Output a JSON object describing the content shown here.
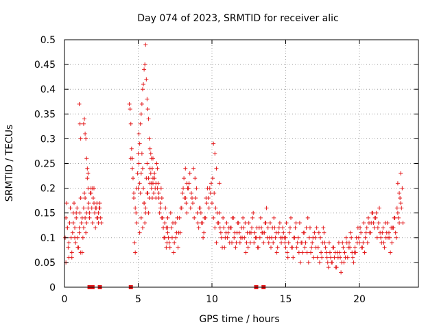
{
  "chart_data": {
    "type": "scatter",
    "title": "Day 074 of 2023, SRMTID for receiver alic",
    "xlabel": "GPS time / hours",
    "ylabel": "SRMTID / TECUs",
    "xlim": [
      0,
      24
    ],
    "ylim": [
      0,
      0.5
    ],
    "x_ticks": [
      "0",
      "5",
      "10",
      "15",
      "20"
    ],
    "y_ticks": [
      "0",
      "0.05",
      "0.1",
      "0.15",
      "0.2",
      "0.25",
      "0.3",
      "0.35",
      "0.4",
      "0.45",
      "0.5"
    ],
    "grid": true,
    "marker": "+",
    "color": "#e41a1c",
    "zero_markers": {
      "marker": "square",
      "x": [
        1.7,
        1.9,
        2.4,
        4.5,
        13.0,
        13.5
      ]
    },
    "series": [
      {
        "x": [
          0.05,
          0.1,
          0.15,
          0.2,
          0.25,
          0.3,
          0.35,
          0.4,
          0.45,
          0.5,
          0.55,
          0.6,
          0.65,
          0.7,
          0.75,
          0.8,
          0.85,
          0.9,
          0.95,
          1.0,
          1.05,
          1.1,
          1.15,
          1.2,
          1.25,
          1.3,
          1.35,
          1.4,
          1.45,
          1.5,
          1.55,
          1.6,
          1.65,
          1.7,
          1.75,
          1.8,
          1.85,
          1.9,
          1.95,
          2.0,
          2.05,
          2.1,
          2.15,
          2.2,
          2.25,
          2.3,
          2.35,
          2.4,
          2.45,
          2.5,
          0.1,
          0.2,
          0.3,
          0.4,
          0.5,
          0.6,
          0.7,
          0.8,
          0.9,
          1.0,
          1.1,
          1.2,
          1.3,
          1.4,
          1.5,
          1.6,
          1.7,
          1.8,
          1.9,
          2.0,
          2.1,
          2.2,
          2.3,
          2.4,
          1.0,
          1.05,
          1.1,
          1.3,
          1.35,
          1.4,
          1.45,
          1.5,
          1.55,
          1.6
        ],
        "y": [
          0.1,
          0.14,
          0.17,
          0.12,
          0.08,
          0.06,
          0.13,
          0.16,
          0.1,
          0.07,
          0.11,
          0.15,
          0.17,
          0.12,
          0.09,
          0.14,
          0.16,
          0.1,
          0.08,
          0.12,
          0.15,
          0.18,
          0.13,
          0.07,
          0.1,
          0.16,
          0.19,
          0.14,
          0.11,
          0.15,
          0.22,
          0.2,
          0.17,
          0.14,
          0.19,
          0.2,
          0.16,
          0.13,
          0.18,
          0.2,
          0.15,
          0.12,
          0.16,
          0.17,
          0.14,
          0.13,
          0.16,
          0.17,
          0.14,
          0.13,
          0.05,
          0.12,
          0.09,
          0.16,
          0.06,
          0.13,
          0.1,
          0.15,
          0.08,
          0.11,
          0.07,
          0.14,
          0.12,
          0.18,
          0.13,
          0.16,
          0.15,
          0.19,
          0.2,
          0.17,
          0.16,
          0.14,
          0.15,
          0.16,
          0.37,
          0.33,
          0.3,
          0.33,
          0.34,
          0.31,
          0.3,
          0.26,
          0.24,
          0.23
        ]
      },
      {
        "x": [
          4.4,
          4.45,
          4.5,
          4.55,
          4.6,
          4.65,
          4.7,
          4.75,
          4.8,
          4.85,
          4.9,
          4.95,
          5.0,
          5.05,
          5.1,
          5.15,
          5.2,
          5.25,
          5.3,
          5.35,
          5.4,
          5.45,
          5.5,
          5.55,
          5.6,
          5.65,
          5.7,
          5.75,
          5.8,
          5.85,
          5.9,
          5.95,
          6.0,
          6.05,
          6.1,
          6.15,
          6.2,
          6.25,
          6.3,
          6.35,
          6.4,
          6.45,
          6.5,
          6.55,
          6.6,
          6.65,
          6.7,
          6.75,
          6.8,
          6.85,
          6.9,
          6.95,
          7.0,
          4.5,
          4.6,
          4.7,
          4.8,
          4.9,
          5.0,
          5.1,
          5.2,
          5.3,
          5.4,
          5.5,
          5.6,
          5.7,
          5.8,
          5.9,
          6.0,
          6.1,
          6.2,
          6.3,
          6.4,
          6.5,
          6.6,
          6.7,
          6.8,
          6.9,
          7.0,
          5.0,
          5.05,
          5.1,
          5.15,
          5.2,
          5.25,
          5.3,
          5.35,
          5.4,
          5.45,
          5.5,
          5.55,
          5.6,
          5.65,
          5.7,
          5.75,
          5.8,
          5.85,
          5.9,
          5.95,
          6.0
        ],
        "y": [
          0.37,
          0.36,
          0.33,
          0.28,
          0.26,
          0.22,
          0.18,
          0.09,
          0.07,
          0.15,
          0.2,
          0.23,
          0.27,
          0.25,
          0.21,
          0.19,
          0.23,
          0.27,
          0.24,
          0.2,
          0.17,
          0.13,
          0.16,
          0.22,
          0.25,
          0.19,
          0.15,
          0.18,
          0.21,
          0.23,
          0.2,
          0.18,
          0.21,
          0.19,
          0.22,
          0.2,
          0.18,
          0.25,
          0.24,
          0.21,
          0.19,
          0.15,
          0.17,
          0.2,
          0.18,
          0.14,
          0.12,
          0.1,
          0.13,
          0.16,
          0.12,
          0.09,
          0.11,
          0.26,
          0.24,
          0.19,
          0.16,
          0.13,
          0.2,
          0.11,
          0.14,
          0.12,
          0.17,
          0.15,
          0.19,
          0.22,
          0.24,
          0.21,
          0.26,
          0.23,
          0.21,
          0.2,
          0.18,
          0.16,
          0.14,
          0.12,
          0.1,
          0.08,
          0.14,
          0.27,
          0.31,
          0.29,
          0.33,
          0.35,
          0.37,
          0.4,
          0.41,
          0.44,
          0.45,
          0.49,
          0.42,
          0.38,
          0.36,
          0.34,
          0.3,
          0.28,
          0.27,
          0.26,
          0.24,
          0.22
        ]
      },
      {
        "x": [
          7.0,
          7.1,
          7.2,
          7.3,
          7.4,
          7.5,
          7.6,
          7.7,
          7.8,
          7.9,
          8.0,
          8.1,
          8.2,
          8.3,
          8.4,
          8.5,
          8.6,
          8.7,
          8.8,
          8.9,
          9.0,
          9.1,
          9.2,
          9.3,
          9.4,
          9.5,
          9.6,
          9.7,
          9.8,
          9.9,
          10.0,
          10.1,
          10.2,
          10.3,
          10.4,
          10.5,
          10.6,
          10.7,
          10.8,
          10.9,
          11.0,
          11.1,
          11.2,
          11.3,
          11.4,
          11.5,
          11.6,
          11.7,
          11.8,
          11.9,
          12.0,
          12.1,
          12.2,
          12.3,
          12.4,
          12.5,
          12.6,
          12.7,
          12.8,
          12.9,
          13.0,
          13.1,
          13.2,
          13.3,
          13.4,
          13.5,
          13.6,
          13.7,
          13.8,
          13.9,
          14.0,
          14.1,
          14.2,
          14.3,
          14.4,
          14.5,
          14.6,
          14.7,
          14.8,
          14.9,
          15.0,
          7.05,
          7.25,
          7.45,
          7.65,
          7.85,
          8.05,
          8.25,
          8.45,
          8.65,
          8.85,
          9.05,
          9.25,
          9.45,
          9.65,
          9.85,
          10.05,
          10.25,
          10.45,
          10.65,
          10.85,
          11.05,
          11.25,
          11.45,
          11.65,
          11.85,
          12.05,
          12.25,
          12.45,
          12.65,
          12.85,
          13.05,
          13.25,
          13.45,
          13.65,
          13.85,
          14.05,
          14.25,
          14.45,
          14.65,
          14.85,
          7.15,
          7.35,
          7.55,
          7.75,
          7.95,
          8.15,
          8.35,
          8.55,
          8.75,
          8.95,
          9.15,
          9.35,
          9.55,
          9.75,
          9.95,
          10.15,
          10.35,
          10.55,
          10.75,
          10.95,
          11.15,
          11.35,
          11.55,
          11.75,
          11.95,
          12.15,
          12.35,
          12.55,
          12.75,
          12.95,
          13.15,
          13.35,
          13.55,
          13.75,
          13.95,
          14.15,
          14.35,
          14.55,
          14.75,
          14.95,
          8.2,
          8.3,
          8.4,
          10.1,
          10.2,
          10.3,
          10.5
        ],
        "y": [
          0.12,
          0.09,
          0.15,
          0.1,
          0.07,
          0.13,
          0.11,
          0.08,
          0.14,
          0.16,
          0.19,
          0.22,
          0.18,
          0.15,
          0.2,
          0.23,
          0.19,
          0.17,
          0.14,
          0.18,
          0.15,
          0.12,
          0.16,
          0.13,
          0.1,
          0.14,
          0.18,
          0.2,
          0.16,
          0.19,
          0.17,
          0.14,
          0.12,
          0.09,
          0.13,
          0.15,
          0.11,
          0.08,
          0.12,
          0.1,
          0.13,
          0.11,
          0.09,
          0.12,
          0.14,
          0.1,
          0.08,
          0.11,
          0.13,
          0.09,
          0.12,
          0.14,
          0.1,
          0.07,
          0.11,
          0.13,
          0.09,
          0.12,
          0.15,
          0.11,
          0.1,
          0.08,
          0.12,
          0.14,
          0.11,
          0.09,
          0.13,
          0.16,
          0.12,
          0.1,
          0.08,
          0.12,
          0.14,
          0.1,
          0.07,
          0.11,
          0.13,
          0.09,
          0.12,
          0.1,
          0.08,
          0.1,
          0.12,
          0.09,
          0.14,
          0.11,
          0.2,
          0.17,
          0.21,
          0.18,
          0.22,
          0.13,
          0.15,
          0.11,
          0.17,
          0.2,
          0.22,
          0.16,
          0.13,
          0.1,
          0.08,
          0.1,
          0.12,
          0.14,
          0.09,
          0.11,
          0.1,
          0.13,
          0.08,
          0.11,
          0.09,
          0.12,
          0.1,
          0.11,
          0.13,
          0.09,
          0.1,
          0.12,
          0.08,
          0.1,
          0.11,
          0.08,
          0.13,
          0.1,
          0.11,
          0.16,
          0.18,
          0.2,
          0.16,
          0.24,
          0.2,
          0.16,
          0.13,
          0.14,
          0.18,
          0.21,
          0.19,
          0.15,
          0.12,
          0.14,
          0.11,
          0.12,
          0.09,
          0.11,
          0.13,
          0.1,
          0.12,
          0.09,
          0.11,
          0.14,
          0.1,
          0.08,
          0.12,
          0.11,
          0.1,
          0.13,
          0.09,
          0.11,
          0.12,
          0.1,
          0.09,
          0.24,
          0.21,
          0.2,
          0.29,
          0.27,
          0.24,
          0.21
        ]
      },
      {
        "x": [
          15.0,
          15.1,
          15.2,
          15.3,
          15.4,
          15.5,
          15.6,
          15.7,
          15.8,
          15.9,
          16.0,
          16.1,
          16.2,
          16.3,
          16.4,
          16.5,
          16.6,
          16.7,
          16.8,
          16.9,
          17.0,
          17.1,
          17.2,
          17.3,
          17.4,
          17.5,
          17.6,
          17.7,
          17.8,
          17.9,
          18.0,
          18.1,
          18.2,
          18.3,
          18.4,
          18.5,
          18.6,
          18.7,
          18.8,
          18.9,
          19.0,
          19.1,
          19.2,
          19.3,
          19.4,
          19.5,
          19.6,
          19.7,
          19.8,
          19.9,
          20.0,
          20.1,
          20.2,
          20.3,
          20.4,
          20.5,
          20.6,
          20.7,
          20.8,
          20.9,
          21.0,
          21.1,
          21.2,
          21.3,
          21.4,
          21.5,
          21.6,
          21.7,
          21.8,
          21.9,
          22.0,
          22.1,
          22.2,
          22.3,
          22.4,
          22.5,
          22.6,
          22.7,
          22.8,
          15.05,
          15.25,
          15.45,
          15.65,
          15.85,
          16.05,
          16.25,
          16.45,
          16.65,
          16.85,
          17.05,
          17.25,
          17.45,
          17.65,
          17.85,
          18.05,
          18.25,
          18.45,
          18.65,
          18.85,
          19.05,
          19.25,
          19.45,
          19.65,
          19.85,
          20.05,
          20.25,
          20.45,
          20.65,
          20.85,
          21.05,
          21.25,
          21.45,
          21.65,
          21.85,
          22.05,
          22.25,
          22.45,
          22.65,
          22.85,
          15.15,
          15.35,
          15.55,
          15.75,
          15.95,
          16.15,
          16.35,
          16.55,
          16.75,
          16.95,
          17.15,
          17.35,
          17.55,
          17.75,
          17.95,
          18.15,
          18.35,
          18.55,
          18.75,
          18.95,
          19.15,
          19.35,
          19.55,
          19.75,
          19.95,
          20.15,
          20.35,
          20.55,
          20.75,
          20.95,
          21.15,
          21.35,
          21.55,
          21.75,
          21.95,
          22.15,
          22.35,
          22.55,
          22.75,
          22.95,
          22.6,
          22.7,
          22.8,
          22.9
        ],
        "y": [
          0.1,
          0.07,
          0.09,
          0.12,
          0.08,
          0.06,
          0.1,
          0.13,
          0.09,
          0.07,
          0.05,
          0.09,
          0.11,
          0.08,
          0.12,
          0.14,
          0.1,
          0.07,
          0.09,
          0.06,
          0.1,
          0.12,
          0.08,
          0.05,
          0.07,
          0.09,
          0.11,
          0.08,
          0.06,
          0.04,
          0.07,
          0.05,
          0.08,
          0.06,
          0.04,
          0.07,
          0.09,
          0.06,
          0.05,
          0.08,
          0.07,
          0.1,
          0.06,
          0.09,
          0.11,
          0.07,
          0.05,
          0.08,
          0.1,
          0.12,
          0.09,
          0.11,
          0.08,
          0.13,
          0.1,
          0.12,
          0.14,
          0.11,
          0.13,
          0.15,
          0.12,
          0.14,
          0.1,
          0.13,
          0.11,
          0.09,
          0.12,
          0.08,
          0.1,
          0.13,
          0.11,
          0.07,
          0.09,
          0.12,
          0.14,
          0.1,
          0.15,
          0.13,
          0.17,
          0.13,
          0.11,
          0.08,
          0.12,
          0.1,
          0.09,
          0.11,
          0.07,
          0.12,
          0.1,
          0.08,
          0.11,
          0.06,
          0.09,
          0.05,
          0.06,
          0.08,
          0.04,
          0.07,
          0.09,
          0.06,
          0.08,
          0.1,
          0.07,
          0.09,
          0.12,
          0.09,
          0.11,
          0.13,
          0.15,
          0.14,
          0.12,
          0.1,
          0.09,
          0.11,
          0.1,
          0.12,
          0.11,
          0.14,
          0.16,
          0.06,
          0.14,
          0.1,
          0.08,
          0.13,
          0.07,
          0.09,
          0.05,
          0.08,
          0.11,
          0.06,
          0.1,
          0.12,
          0.07,
          0.09,
          0.05,
          0.07,
          0.06,
          0.03,
          0.05,
          0.09,
          0.08,
          0.06,
          0.07,
          0.1,
          0.08,
          0.07,
          0.09,
          0.11,
          0.13,
          0.15,
          0.16,
          0.11,
          0.13,
          0.1,
          0.12,
          0.14,
          0.16,
          0.18,
          0.13,
          0.21,
          0.19,
          0.23,
          0.2
        ]
      }
    ]
  }
}
